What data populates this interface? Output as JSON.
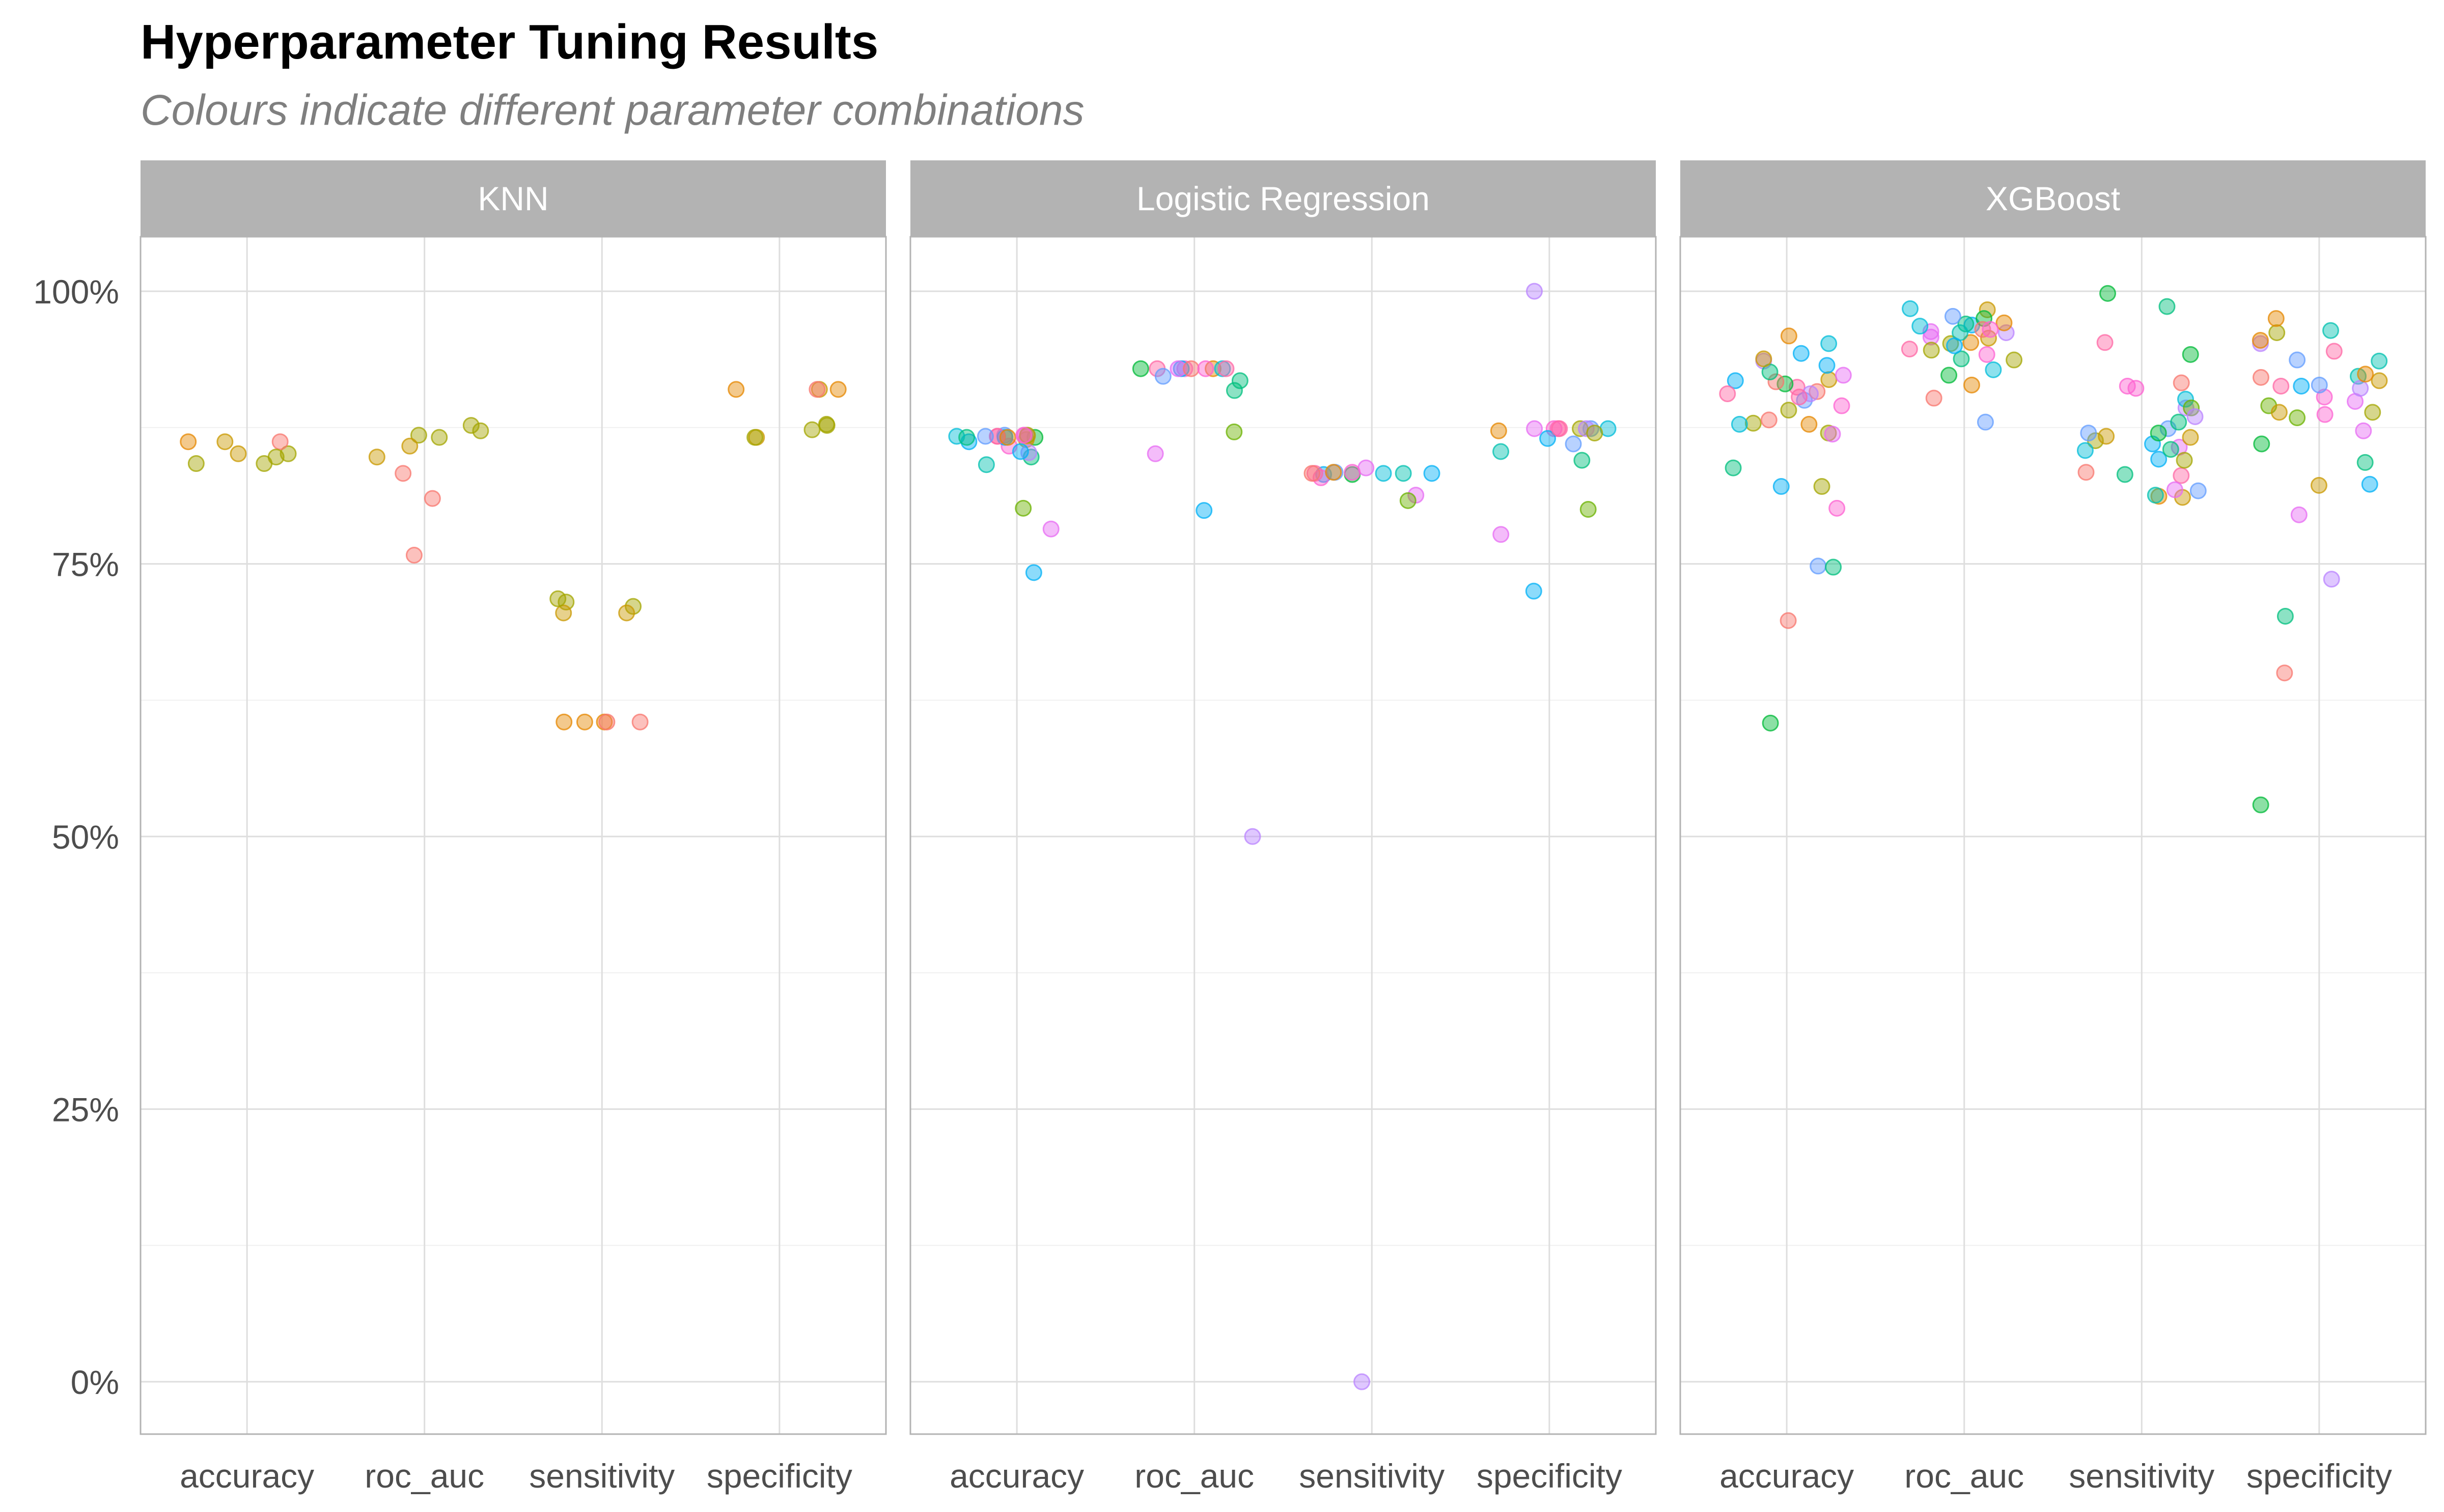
{
  "title": "Hyperparameter Tuning Results",
  "subtitle": "Colours indicate different parameter combinations",
  "chart_data": {
    "type": "scatter",
    "title": "Hyperparameter Tuning Results",
    "subtitle": "Colours indicate different parameter combinations",
    "xlabel": "",
    "ylabel": "",
    "ylim": [
      -0.048,
      1.05
    ],
    "y_ticks": [
      0,
      0.25,
      0.5,
      0.75,
      1.0
    ],
    "y_tick_labels": [
      "0%",
      "25%",
      "50%",
      "75%",
      "100%"
    ],
    "grid": true,
    "legend": "none",
    "categories": [
      "accuracy",
      "roc_auc",
      "sensitivity",
      "specificity"
    ],
    "palette": [
      "#F8766D",
      "#E58700",
      "#C99800",
      "#A3A500",
      "#6BB100",
      "#00BA38",
      "#00BF7D",
      "#00C0AF",
      "#00BCD8",
      "#00B0F6",
      "#619CFF",
      "#B983FF",
      "#E76BF3",
      "#FD61D1",
      "#FF67A4"
    ],
    "panels": [
      {
        "name": "KNN",
        "points": {
          "accuracy": [
            [
              0.851,
              2
            ],
            [
              0.851,
              3
            ],
            [
              0.842,
              3
            ],
            [
              0.862,
              0
            ],
            [
              0.862,
              1
            ],
            [
              0.862,
              2
            ],
            [
              0.848,
              3
            ],
            [
              0.842,
              3
            ]
          ],
          "roc_auc": [
            [
              0.868,
              3
            ],
            [
              0.877,
              3
            ],
            [
              0.81,
              0
            ],
            [
              0.758,
              0
            ],
            [
              0.833,
              0
            ],
            [
              0.858,
              2
            ],
            [
              0.872,
              3
            ],
            [
              0.848,
              2
            ],
            [
              0.866,
              3
            ]
          ],
          "sensitivity": [
            [
              0.711,
              3
            ],
            [
              0.605,
              1
            ],
            [
              0.705,
              2
            ],
            [
              0.715,
              3
            ],
            [
              0.705,
              2
            ],
            [
              0.605,
              0
            ],
            [
              0.605,
              1
            ],
            [
              0.718,
              3
            ],
            [
              0.605,
              1
            ],
            [
              0.605,
              0
            ]
          ],
          "specificity": [
            [
              0.877,
              3
            ],
            [
              0.91,
              1
            ],
            [
              0.878,
              3
            ],
            [
              0.91,
              2
            ],
            [
              0.91,
              1
            ],
            [
              0.866,
              2
            ],
            [
              0.873,
              3
            ],
            [
              0.91,
              0
            ],
            [
              0.866,
              3
            ]
          ]
        }
      },
      {
        "name": "Logistic Regression",
        "points": {
          "accuracy": [
            [
              0.862,
              9
            ],
            [
              0.866,
              5
            ],
            [
              0.867,
              0
            ],
            [
              0.782,
              12
            ],
            [
              0.841,
              7
            ],
            [
              0.868,
              10
            ],
            [
              0.801,
              4
            ],
            [
              0.858,
              13
            ],
            [
              0.848,
              6
            ],
            [
              0.867,
              14
            ],
            [
              0.864,
              2
            ],
            [
              0.852,
              11
            ],
            [
              0.867,
              8
            ],
            [
              0.866,
              9
            ],
            [
              0.868,
              12
            ],
            [
              0.866,
              6
            ],
            [
              0.867,
              14
            ],
            [
              0.866,
              1
            ],
            [
              0.868,
              3
            ],
            [
              0.853,
              9
            ],
            [
              0.742,
              9
            ],
            [
              0.867,
              10
            ],
            [
              0.868,
              13
            ]
          ],
          "roc_auc": [
            [
              0.929,
              13
            ],
            [
              0.918,
              6
            ],
            [
              0.929,
              9
            ],
            [
              0.851,
              12
            ],
            [
              0.929,
              14
            ],
            [
              0.922,
              10
            ],
            [
              0.929,
              1
            ],
            [
              0.929,
              8
            ],
            [
              0.929,
              12
            ],
            [
              0.871,
              4
            ],
            [
              0.929,
              0
            ],
            [
              0.5,
              11
            ],
            [
              0.929,
              13
            ],
            [
              0.799,
              9
            ],
            [
              0.929,
              5
            ],
            [
              0.909,
              6
            ],
            [
              0.929,
              14
            ]
          ],
          "sensitivity": [
            [
              0.832,
              9
            ],
            [
              0.829,
              13
            ],
            [
              0.0,
              11
            ],
            [
              0.813,
              12
            ],
            [
              0.833,
              14
            ],
            [
              0.832,
              5
            ],
            [
              0.808,
              4
            ],
            [
              0.833,
              8
            ],
            [
              0.834,
              10
            ],
            [
              0.833,
              0
            ],
            [
              0.838,
              12
            ],
            [
              0.833,
              9
            ],
            [
              0.833,
              7
            ],
            [
              0.834,
              1
            ],
            [
              0.834,
              13
            ]
          ],
          "specificity": [
            [
              0.874,
              14
            ],
            [
              0.845,
              6
            ],
            [
              0.874,
              13
            ],
            [
              0.874,
              10
            ],
            [
              0.865,
              9
            ],
            [
              0.8,
              4
            ],
            [
              0.874,
              3
            ],
            [
              0.874,
              11
            ],
            [
              0.874,
              8
            ],
            [
              0.86,
              10
            ],
            [
              0.725,
              9
            ],
            [
              0.874,
              12
            ],
            [
              0.872,
              1
            ],
            [
              0.853,
              7
            ],
            [
              0.777,
              12
            ],
            [
              1.0,
              11
            ],
            [
              0.874,
              14
            ],
            [
              0.87,
              3
            ]
          ]
        }
      },
      {
        "name": "XGBoost",
        "points": {
          "accuracy": [
            [
              0.918,
              9
            ],
            [
              0.879,
              3
            ],
            [
              0.748,
              10
            ],
            [
              0.906,
              14
            ],
            [
              0.821,
              3
            ],
            [
              0.878,
              1
            ],
            [
              0.87,
              3
            ],
            [
              0.952,
              8
            ],
            [
              0.912,
              14
            ],
            [
              0.936,
              11
            ],
            [
              0.9,
              10
            ],
            [
              0.943,
              9
            ],
            [
              0.908,
              0
            ],
            [
              0.604,
              5
            ],
            [
              0.747,
              6
            ],
            [
              0.869,
              12
            ],
            [
              0.919,
              2
            ],
            [
              0.698,
              0
            ],
            [
              0.891,
              3
            ],
            [
              0.838,
              6
            ],
            [
              0.915,
              5
            ],
            [
              0.959,
              1
            ],
            [
              0.923,
              12
            ],
            [
              0.878,
              8
            ],
            [
              0.801,
              13
            ],
            [
              0.932,
              9
            ],
            [
              0.917,
              0
            ],
            [
              0.906,
              11
            ],
            [
              0.821,
              9
            ],
            [
              0.926,
              6
            ],
            [
              0.938,
              2
            ],
            [
              0.903,
              14
            ],
            [
              0.882,
              0
            ],
            [
              0.895,
              13
            ]
          ],
          "roc_auc": [
            [
              0.902,
              0
            ],
            [
              0.963,
              12
            ],
            [
              0.969,
              9
            ],
            [
              0.983,
              2
            ],
            [
              0.937,
              3
            ],
            [
              0.953,
              1
            ],
            [
              0.975,
              5
            ],
            [
              0.928,
              8
            ],
            [
              0.947,
              14
            ],
            [
              0.962,
              11
            ],
            [
              0.97,
              6
            ],
            [
              0.952,
              3
            ],
            [
              0.942,
              13
            ],
            [
              0.957,
              2
            ],
            [
              0.977,
              10
            ],
            [
              0.984,
              8
            ],
            [
              0.965,
              0
            ],
            [
              0.923,
              5
            ],
            [
              0.938,
              6
            ],
            [
              0.971,
              1
            ],
            [
              0.958,
              12
            ],
            [
              0.88,
              10
            ],
            [
              0.962,
              7
            ],
            [
              0.946,
              3
            ],
            [
              0.95,
              9
            ],
            [
              0.914,
              1
            ],
            [
              0.965,
              13
            ],
            [
              0.968,
              8
            ]
          ],
          "sensitivity": [
            [
              0.832,
              6
            ],
            [
              0.953,
              14
            ],
            [
              0.911,
              13
            ],
            [
              0.817,
              10
            ],
            [
              0.986,
              6
            ],
            [
              0.998,
              5
            ],
            [
              0.863,
              3
            ],
            [
              0.857,
              12
            ],
            [
              0.846,
              9
            ],
            [
              0.874,
              10
            ],
            [
              0.834,
              0
            ],
            [
              0.812,
              1
            ],
            [
              0.942,
              5
            ],
            [
              0.893,
              11
            ],
            [
              0.866,
              2
            ],
            [
              0.811,
              2
            ],
            [
              0.831,
              14
            ],
            [
              0.818,
              12
            ],
            [
              0.87,
              10
            ],
            [
              0.845,
              3
            ],
            [
              0.88,
              6
            ],
            [
              0.916,
              0
            ],
            [
              0.854,
              8
            ],
            [
              0.813,
              7
            ],
            [
              0.86,
              9
            ],
            [
              0.901,
              8
            ],
            [
              0.893,
              4
            ],
            [
              0.913,
              13
            ],
            [
              0.87,
              5
            ],
            [
              0.885,
              11
            ],
            [
              0.855,
              6
            ],
            [
              0.867,
              2
            ]
          ],
          "specificity": [
            [
              0.913,
              9
            ],
            [
              0.952,
              11
            ],
            [
              0.895,
              4
            ],
            [
              0.922,
              7
            ],
            [
              0.86,
              5
            ],
            [
              0.872,
              12
            ],
            [
              0.822,
              2
            ],
            [
              0.65,
              0
            ],
            [
              0.529,
              5
            ],
            [
              0.913,
              14
            ],
            [
              0.936,
              7
            ],
            [
              0.899,
              12
            ],
            [
              0.962,
              3
            ],
            [
              0.937,
              10
            ],
            [
              0.887,
              13
            ],
            [
              0.795,
              12
            ],
            [
              0.823,
              9
            ],
            [
              0.736,
              11
            ],
            [
              0.955,
              1
            ],
            [
              0.918,
              2
            ],
            [
              0.903,
              13
            ],
            [
              0.914,
              10
            ],
            [
              0.945,
              14
            ],
            [
              0.702,
              6
            ],
            [
              0.975,
              1
            ],
            [
              0.964,
              7
            ],
            [
              0.889,
              2
            ],
            [
              0.911,
              11
            ],
            [
              0.921,
              0
            ],
            [
              0.884,
              4
            ],
            [
              0.843,
              6
            ],
            [
              0.889,
              3
            ],
            [
              0.924,
              1
            ]
          ]
        }
      }
    ]
  }
}
